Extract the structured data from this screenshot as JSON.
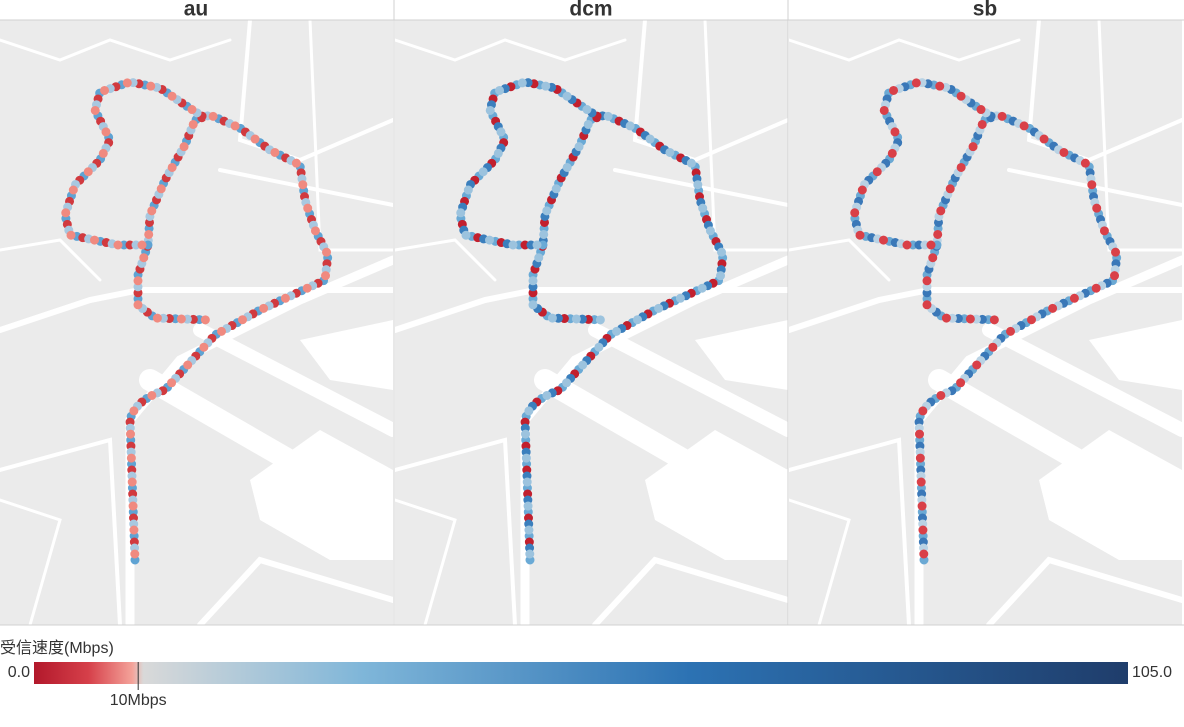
{
  "panels": [
    {
      "title": "au"
    },
    {
      "title": "dcm"
    },
    {
      "title": "sb"
    }
  ],
  "legend": {
    "title": "受信速度(Mbps)",
    "min": {
      "value": 0,
      "label": "0.0"
    },
    "max": {
      "value": 105,
      "label": "105.0"
    },
    "marker": {
      "value": 10,
      "label": "10Mbps"
    }
  }
}
